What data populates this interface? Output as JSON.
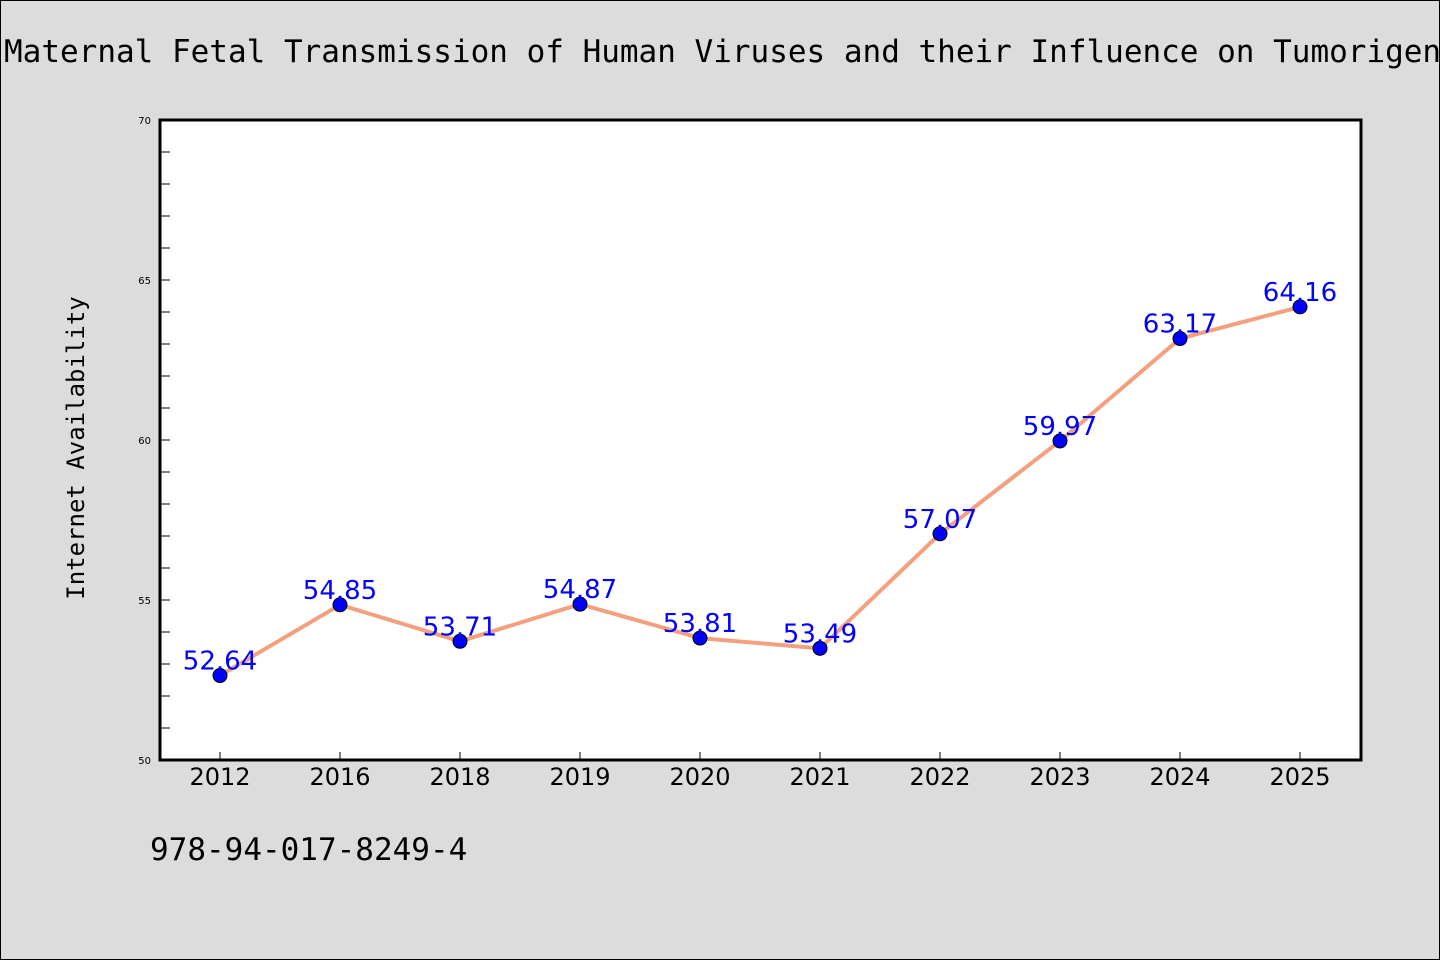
{
  "page": {
    "title": "Maternal Fetal Transmission of Human Viruses and their Influence on Tumorigenesis",
    "isbn": "978-94-017-8249-4"
  },
  "chart_data": {
    "type": "line",
    "title": "Maternal Fetal Transmission of Human Viruses and their Influence on Tumorigenesis",
    "xlabel": "",
    "ylabel": "Internet Availability",
    "categories": [
      "2012",
      "2016",
      "2018",
      "2019",
      "2020",
      "2021",
      "2022",
      "2023",
      "2024",
      "2025"
    ],
    "series": [
      {
        "values": [
          52.64,
          54.85,
          53.71,
          54.87,
          53.81,
          53.49,
          57.07,
          59.97,
          63.17,
          64.16
        ]
      }
    ],
    "data_labels": [
      "52.64",
      "54.85",
      "53.71",
      "54.87",
      "53.81",
      "53.49",
      "57.07",
      "59.97",
      "63.17",
      "64.16"
    ],
    "ylim": [
      50,
      70
    ],
    "y_ticks": [
      "50",
      "55",
      "60",
      "65",
      "70"
    ],
    "grid": false,
    "line_color": "#f4a07f",
    "marker_color": "#0000ff",
    "label_color": "#0000ff",
    "background_color": "#dcdcdc",
    "plot_background_color": "#ffffff"
  }
}
